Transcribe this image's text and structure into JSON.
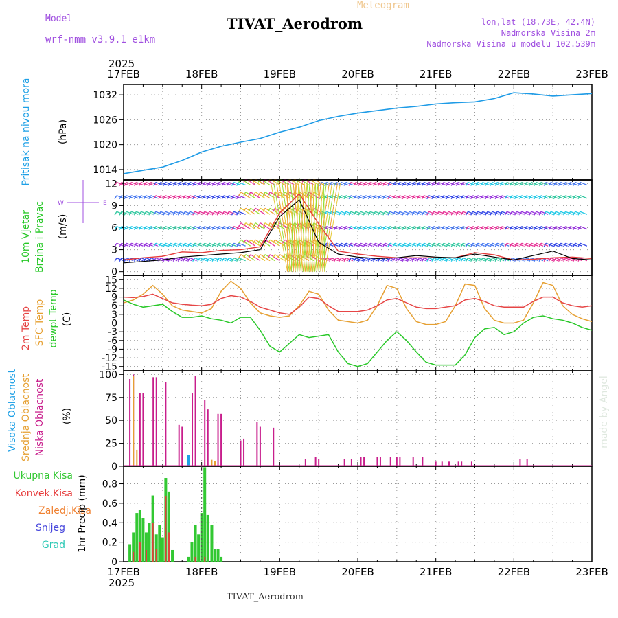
{
  "header": {
    "model_label": "Model",
    "model_name": "wrf-nmm_v3.9.1 e1km",
    "meteogram_label": "Meteogram",
    "station_title": "TIVAT_Aerodrom",
    "lonlat": "lon,lat (18.73E, 42.4N)",
    "altitude": "Nadmorska Visina 2m",
    "model_altitude": "Nadmorska Visina u modelu 102.539m",
    "footer_title": "TIVAT_Aerodrom",
    "credit": "made by Angel"
  },
  "colors": {
    "pressure": "#1e9be6",
    "temp2m": "#e64646",
    "sfc_temp": "#e6a032",
    "dewpt": "#28c828",
    "high_cloud": "#1ea0e6",
    "mid_cloud": "#e6a032",
    "low_cloud": "#c81e8c",
    "total_precip": "#32c832",
    "conv_precip": "#e63c3c",
    "freezing": "#f08232",
    "snow": "#4646dc",
    "graupel": "#28c8b4",
    "gust": "#e63c3c",
    "wind_speed": "#000000"
  },
  "chart_data": [
    {
      "panel": "pressure",
      "type": "line",
      "ylabel_lines": [
        "Pritisak na nivou mora",
        "(hPa)"
      ],
      "yticks": [
        1014,
        1020,
        1026,
        1032
      ],
      "ylim": [
        1011.5,
        1034.5
      ],
      "grid": true,
      "x": [
        0,
        0.25,
        0.5,
        0.75,
        1.0,
        1.25,
        1.5,
        1.75,
        2.0,
        2.25,
        2.5,
        2.75,
        3.0,
        3.25,
        3.5,
        3.75,
        4.0,
        4.25,
        4.5,
        4.75,
        5.0,
        5.25,
        5.5,
        5.75,
        6.0
      ],
      "series": [
        {
          "values": [
            1013.0,
            1013.8,
            1014.6,
            1016.2,
            1018.2,
            1019.6,
            1020.6,
            1021.5,
            1023.0,
            1024.2,
            1025.8,
            1026.8,
            1027.6,
            1028.2,
            1028.8,
            1029.2,
            1029.8,
            1030.1,
            1030.3,
            1031.1,
            1032.5,
            1032.2,
            1031.7,
            1032.0,
            1032.3
          ]
        }
      ]
    },
    {
      "panel": "wind",
      "type": "line",
      "ylabel_lines": [
        "10m Vjetar",
        "Brzina i Pravac",
        "(m/s)"
      ],
      "yticks": [
        0,
        3,
        6,
        9,
        12
      ],
      "ylim": [
        -0.5,
        12.5
      ],
      "grid": true,
      "x": [
        0,
        0.25,
        0.5,
        0.75,
        1.0,
        1.25,
        1.5,
        1.75,
        2.0,
        2.25,
        2.5,
        2.75,
        3.0,
        3.25,
        3.5,
        3.75,
        4.0,
        4.25,
        4.5,
        4.75,
        5.0,
        5.25,
        5.5,
        5.75,
        6.0
      ],
      "series": [
        {
          "name": "gust",
          "values": [
            1.6,
            1.9,
            2.1,
            2.7,
            2.6,
            2.9,
            3.0,
            3.4,
            8.0,
            10.6,
            6.5,
            2.8,
            2.4,
            2.1,
            1.9,
            1.9,
            1.9,
            1.9,
            2.6,
            2.3,
            1.6,
            1.7,
            1.9,
            2.0,
            1.8
          ]
        },
        {
          "name": "speed",
          "values": [
            1.2,
            1.4,
            1.6,
            2.0,
            2.2,
            2.4,
            2.6,
            3.0,
            7.5,
            9.8,
            4.0,
            2.4,
            2.0,
            1.8,
            1.9,
            2.2,
            2.0,
            1.9,
            2.4,
            2.0,
            1.6,
            2.2,
            2.8,
            1.8,
            1.6
          ]
        }
      ]
    },
    {
      "panel": "temperature",
      "type": "line",
      "ylabel_lines": [
        "2m Temp",
        "SFC Temp",
        "dewpt Temp",
        "(C)"
      ],
      "yticks": [
        -15,
        -12,
        -9,
        -6,
        -3,
        0,
        3,
        6,
        9,
        12,
        15
      ],
      "ylim": [
        -16.5,
        16.5
      ],
      "grid": true,
      "x": [
        0,
        0.125,
        0.25,
        0.375,
        0.5,
        0.625,
        0.75,
        0.875,
        1.0,
        1.125,
        1.25,
        1.375,
        1.5,
        1.625,
        1.75,
        1.875,
        2.0,
        2.125,
        2.25,
        2.375,
        2.5,
        2.625,
        2.75,
        2.875,
        3.0,
        3.125,
        3.25,
        3.375,
        3.5,
        3.625,
        3.75,
        3.875,
        4.0,
        4.125,
        4.25,
        4.375,
        4.5,
        4.625,
        4.75,
        4.875,
        5.0,
        5.125,
        5.25,
        5.375,
        5.5,
        5.625,
        5.75,
        5.875,
        6.0
      ],
      "series": [
        {
          "name": "2m Temp",
          "values": [
            9.0,
            8.8,
            9.2,
            10.0,
            8.5,
            7.0,
            6.5,
            6.2,
            6.0,
            6.5,
            8.5,
            9.5,
            9.0,
            7.5,
            5.5,
            4.5,
            3.5,
            3.0,
            5.5,
            9.0,
            8.5,
            6.0,
            4.0,
            4.0,
            4.0,
            4.5,
            6.0,
            8.0,
            8.5,
            7.0,
            5.5,
            5.0,
            5.0,
            5.5,
            6.0,
            8.0,
            8.5,
            7.5,
            6.0,
            5.5,
            5.5,
            5.5,
            7.5,
            9.0,
            9.0,
            7.0,
            6.0,
            5.5,
            6.0
          ]
        },
        {
          "name": "SFC Temp",
          "values": [
            7.0,
            8.0,
            10.0,
            13.0,
            10.0,
            6.0,
            4.5,
            4.0,
            3.5,
            5.0,
            11.0,
            14.5,
            12.0,
            7.0,
            3.5,
            2.5,
            2.0,
            2.5,
            6.0,
            11.0,
            10.0,
            4.5,
            1.0,
            0.5,
            0.0,
            1.0,
            6.0,
            13.0,
            12.0,
            5.0,
            0.5,
            -0.5,
            -0.5,
            0.5,
            6.0,
            13.5,
            13.0,
            5.0,
            1.0,
            0.0,
            0.0,
            1.0,
            7.0,
            14.0,
            13.0,
            6.0,
            3.0,
            1.5,
            0.5
          ]
        },
        {
          "name": "dewpt Temp",
          "values": [
            8.0,
            6.5,
            5.5,
            6.0,
            6.5,
            4.0,
            2.0,
            2.0,
            2.5,
            1.5,
            1.0,
            0.0,
            2.0,
            2.0,
            -2.5,
            -8.0,
            -10.0,
            -7.0,
            -4.0,
            -5.0,
            -4.5,
            -4.0,
            -10.0,
            -14.0,
            -15.0,
            -14.0,
            -10.0,
            -6.0,
            -3.0,
            -6.0,
            -10.0,
            -13.5,
            -14.5,
            -14.5,
            -14.5,
            -11.0,
            -5.0,
            -2.0,
            -1.5,
            -4.0,
            -3.0,
            0.0,
            2.0,
            2.5,
            1.5,
            1.0,
            0.0,
            -1.5,
            -2.5
          ]
        }
      ]
    },
    {
      "panel": "clouds",
      "type": "bar",
      "ylabel_lines": [
        "Visoka Oblacnost",
        "Srednja Oblacnost",
        "Niska Oblacnost",
        "(%)"
      ],
      "yticks": [
        0,
        25,
        50,
        75,
        100
      ],
      "ylim": [
        0,
        104
      ],
      "grid": true,
      "low": [
        [
          0.08,
          95
        ],
        [
          0.125,
          100
        ],
        [
          0.21,
          80
        ],
        [
          0.25,
          80
        ],
        [
          0.38,
          97
        ],
        [
          0.42,
          97
        ],
        [
          0.54,
          92
        ],
        [
          0.71,
          45
        ],
        [
          0.75,
          43
        ],
        [
          0.88,
          80
        ],
        [
          0.92,
          98
        ],
        [
          1.04,
          72
        ],
        [
          1.08,
          62
        ],
        [
          1.21,
          57
        ],
        [
          1.25,
          57
        ],
        [
          1.5,
          28
        ],
        [
          1.54,
          30
        ],
        [
          1.71,
          48
        ],
        [
          1.75,
          43
        ],
        [
          1.92,
          42
        ],
        [
          2.33,
          8
        ],
        [
          2.46,
          10
        ],
        [
          2.5,
          8
        ],
        [
          2.83,
          8
        ],
        [
          2.92,
          8
        ],
        [
          3.04,
          10
        ],
        [
          3.08,
          10
        ],
        [
          3.25,
          10
        ],
        [
          3.29,
          10
        ],
        [
          3.42,
          10
        ],
        [
          3.5,
          10
        ],
        [
          3.54,
          10
        ],
        [
          3.71,
          10
        ],
        [
          3.83,
          10
        ],
        [
          4.0,
          5
        ],
        [
          4.08,
          5
        ],
        [
          4.17,
          5
        ],
        [
          4.29,
          5
        ],
        [
          4.33,
          5
        ],
        [
          4.46,
          5
        ],
        [
          5.08,
          8
        ],
        [
          5.17,
          8
        ]
      ],
      "mid": [
        [
          0.125,
          98
        ],
        [
          0.17,
          18
        ],
        [
          1.13,
          7
        ],
        [
          1.17,
          6
        ]
      ],
      "high": [
        [
          0.83,
          12
        ]
      ]
    },
    {
      "panel": "precip",
      "type": "bar",
      "ylabel_lines": [
        "1hr Precip (mm)"
      ],
      "legend": [
        "Ukupna Kisa",
        "Konvek.Kisa",
        "Zaledj.Kisa",
        "Snijeg",
        "Grad"
      ],
      "yticks": [
        0,
        0.2,
        0.4,
        0.6,
        0.8
      ],
      "ylim": [
        0,
        0.98
      ],
      "grid": true,
      "total": [
        [
          0.08,
          0.18
        ],
        [
          0.125,
          0.3
        ],
        [
          0.17,
          0.5
        ],
        [
          0.21,
          0.53
        ],
        [
          0.25,
          0.45
        ],
        [
          0.29,
          0.3
        ],
        [
          0.33,
          0.4
        ],
        [
          0.375,
          0.68
        ],
        [
          0.42,
          0.28
        ],
        [
          0.46,
          0.38
        ],
        [
          0.5,
          0.25
        ],
        [
          0.54,
          0.86
        ],
        [
          0.58,
          0.72
        ],
        [
          0.625,
          0.12
        ],
        [
          0.83,
          0.05
        ],
        [
          0.875,
          0.2
        ],
        [
          0.92,
          0.38
        ],
        [
          0.96,
          0.28
        ],
        [
          1.0,
          0.5
        ],
        [
          1.04,
          0.97
        ],
        [
          1.08,
          0.48
        ],
        [
          1.13,
          0.38
        ],
        [
          1.17,
          0.13
        ],
        [
          1.21,
          0.13
        ],
        [
          1.25,
          0.05
        ]
      ],
      "conv": [
        [
          0.125,
          0.1
        ],
        [
          0.21,
          0.2
        ],
        [
          0.29,
          0.12
        ],
        [
          0.375,
          0.4
        ],
        [
          0.42,
          0.13
        ],
        [
          0.54,
          0.67
        ],
        [
          0.58,
          0.3
        ],
        [
          0.92,
          0.05
        ],
        [
          1.04,
          0.05
        ]
      ]
    }
  ],
  "xaxis": {
    "year": "2025",
    "ticks": [
      "17FEB",
      "18FEB",
      "19FEB",
      "20FEB",
      "21FEB",
      "22FEB",
      "23FEB"
    ]
  }
}
